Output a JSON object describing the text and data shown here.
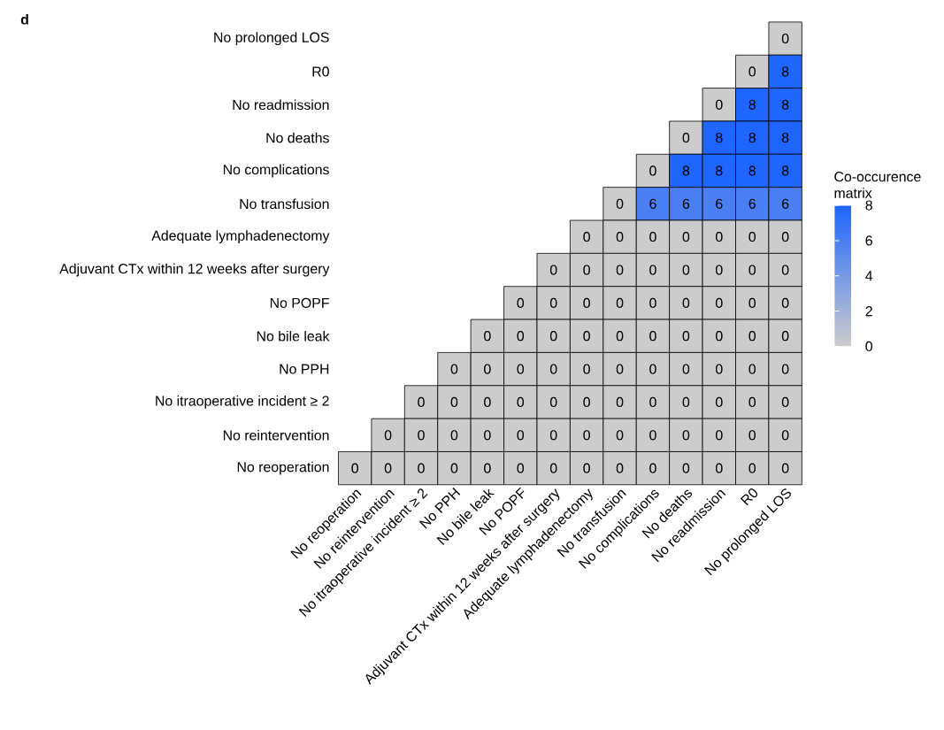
{
  "chart_data": {
    "type": "heatmap",
    "title": "d",
    "clabel": "Co-occurence matrix",
    "categories": [
      "No reoperation",
      "No reintervention",
      "No itraoperative incident ≥ 2",
      "No PPH",
      "No bile leak",
      "No POPF",
      "Adjuvant CTx within 12 weeks after surgery",
      "Adequate  lymphadenectomy",
      "No transfusion",
      "No complications",
      "No deaths",
      "No readmission",
      "R0",
      "No prolonged LOS"
    ],
    "y_categories": [
      "No prolonged LOS",
      "R0",
      "No readmission",
      "No deaths",
      "No complications",
      "No transfusion",
      "Adequate lymphadenectomy",
      "Adjuvant CTx within 12 weeks after surgery",
      "No POPF",
      "No bile leak",
      "No PPH",
      "No itraoperative incident ≥ 2",
      "No reintervention",
      "No reoperation"
    ],
    "cells": [
      [
        null,
        null,
        null,
        null,
        null,
        null,
        null,
        null,
        null,
        null,
        null,
        null,
        null,
        0
      ],
      [
        null,
        null,
        null,
        null,
        null,
        null,
        null,
        null,
        null,
        null,
        null,
        null,
        0,
        8
      ],
      [
        null,
        null,
        null,
        null,
        null,
        null,
        null,
        null,
        null,
        null,
        null,
        0,
        8,
        8
      ],
      [
        null,
        null,
        null,
        null,
        null,
        null,
        null,
        null,
        null,
        null,
        0,
        8,
        8,
        8
      ],
      [
        null,
        null,
        null,
        null,
        null,
        null,
        null,
        null,
        null,
        0,
        8,
        8,
        8,
        8
      ],
      [
        null,
        null,
        null,
        null,
        null,
        null,
        null,
        null,
        0,
        6,
        6,
        6,
        6,
        6
      ],
      [
        null,
        null,
        null,
        null,
        null,
        null,
        null,
        0,
        0,
        0,
        0,
        0,
        0,
        0
      ],
      [
        null,
        null,
        null,
        null,
        null,
        null,
        0,
        0,
        0,
        0,
        0,
        0,
        0,
        0
      ],
      [
        null,
        null,
        null,
        null,
        null,
        0,
        0,
        0,
        0,
        0,
        0,
        0,
        0,
        0
      ],
      [
        null,
        null,
        null,
        null,
        0,
        0,
        0,
        0,
        0,
        0,
        0,
        0,
        0,
        0
      ],
      [
        null,
        null,
        null,
        0,
        0,
        0,
        0,
        0,
        0,
        0,
        0,
        0,
        0,
        0
      ],
      [
        null,
        null,
        0,
        0,
        0,
        0,
        0,
        0,
        0,
        0,
        0,
        0,
        0,
        0
      ],
      [
        null,
        0,
        0,
        0,
        0,
        0,
        0,
        0,
        0,
        0,
        0,
        0,
        0,
        0
      ],
      [
        0,
        0,
        0,
        0,
        0,
        0,
        0,
        0,
        0,
        0,
        0,
        0,
        0,
        0
      ]
    ],
    "clim": [
      0,
      8
    ],
    "cticks": [
      0,
      2,
      4,
      6,
      8
    ],
    "colors": [
      "#cccccc",
      "#1e66ff"
    ],
    "data_labels": true
  }
}
